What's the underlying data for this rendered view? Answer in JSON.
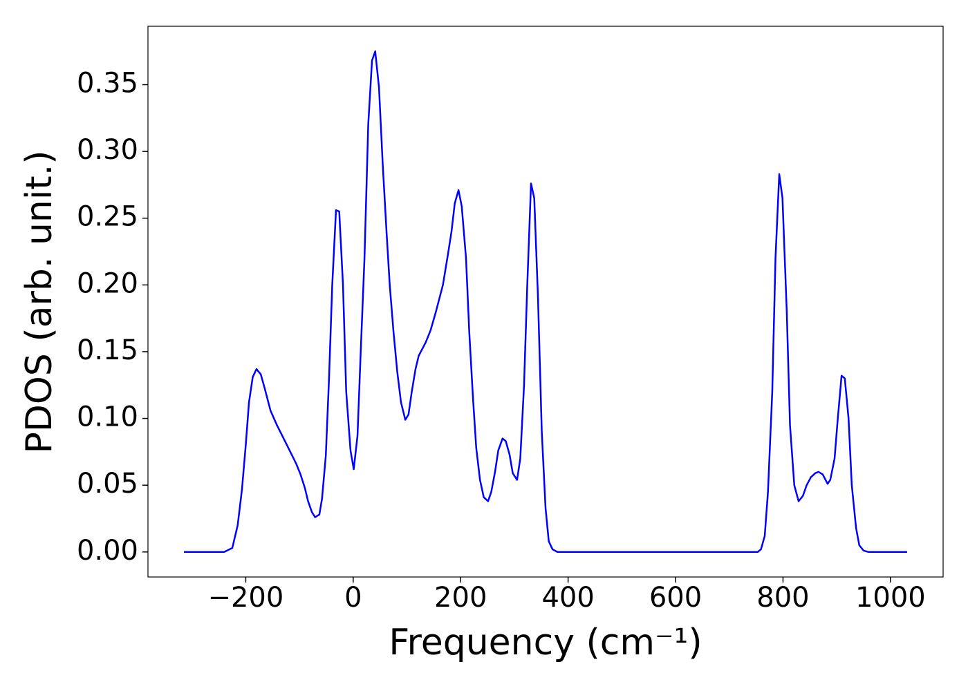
{
  "chart_data": {
    "type": "line",
    "xlabel": "Frequency (cm⁻¹)",
    "ylabel": "PDOS (arb. unit.)",
    "xlim": [
      -382,
      1098
    ],
    "ylim": [
      -0.01875,
      0.39375
    ],
    "xticks": [
      {
        "value": -200,
        "label": "−200"
      },
      0,
      200,
      400,
      600,
      800,
      1000
    ],
    "yticks": [
      {
        "value": 0,
        "label": "0.00"
      },
      {
        "value": 0.05,
        "label": "0.05"
      },
      {
        "value": 0.1,
        "label": "0.10"
      },
      {
        "value": 0.15,
        "label": "0.15"
      },
      {
        "value": 0.2,
        "label": "0.20"
      },
      {
        "value": 0.25,
        "label": "0.25"
      },
      {
        "value": 0.3,
        "label": "0.30"
      },
      {
        "value": 0.35,
        "label": "0.35"
      }
    ],
    "grid": false,
    "series": [
      {
        "color": "#0000ff",
        "x": [
          -315,
          -240,
          -225,
          -215,
          -207,
          -200,
          -194,
          -187,
          -180,
          -172,
          -165,
          -154,
          -142,
          -122,
          -106,
          -98,
          -90,
          -84,
          -77,
          -71,
          -63,
          -58,
          -51,
          -45,
          -39,
          -32,
          -26,
          -19,
          -13,
          -5,
          1,
          8,
          14,
          21,
          28,
          35,
          41,
          48,
          55,
          62,
          68,
          75,
          82,
          89,
          97,
          103,
          109,
          116,
          122,
          135,
          144,
          154,
          167,
          176,
          183,
          189,
          196,
          202,
          210,
          216,
          223,
          229,
          236,
          243,
          251,
          257,
          264,
          270,
          278,
          284,
          291,
          297,
          305,
          311,
          318,
          324,
          331,
          337,
          344,
          351,
          358,
          364,
          371,
          380,
          753,
          759,
          766,
          772,
          780,
          786,
          793,
          799,
          807,
          813,
          821,
          829,
          837,
          844,
          852,
          860,
          866,
          874,
          883,
          888,
          896,
          902,
          909,
          915,
          922,
          928,
          936,
          942,
          950,
          959,
          1031
        ],
        "values": [
          0,
          0,
          0.003,
          0.02,
          0.047,
          0.08,
          0.112,
          0.131,
          0.137,
          0.133,
          0.123,
          0.106,
          0.095,
          0.079,
          0.066,
          0.058,
          0.048,
          0.038,
          0.03,
          0.026,
          0.028,
          0.04,
          0.072,
          0.13,
          0.2,
          0.256,
          0.255,
          0.2,
          0.12,
          0.076,
          0.062,
          0.087,
          0.15,
          0.22,
          0.32,
          0.368,
          0.375,
          0.348,
          0.29,
          0.24,
          0.2,
          0.165,
          0.135,
          0.112,
          0.099,
          0.103,
          0.12,
          0.137,
          0.147,
          0.157,
          0.166,
          0.18,
          0.2,
          0.222,
          0.24,
          0.261,
          0.271,
          0.259,
          0.22,
          0.165,
          0.115,
          0.078,
          0.054,
          0.041,
          0.038,
          0.045,
          0.06,
          0.076,
          0.085,
          0.083,
          0.073,
          0.059,
          0.054,
          0.07,
          0.125,
          0.2,
          0.276,
          0.265,
          0.19,
          0.09,
          0.033,
          0.008,
          0.002,
          0,
          0,
          0.002,
          0.012,
          0.045,
          0.12,
          0.22,
          0.283,
          0.265,
          0.18,
          0.095,
          0.05,
          0.038,
          0.042,
          0.05,
          0.056,
          0.059,
          0.06,
          0.058,
          0.051,
          0.054,
          0.07,
          0.1,
          0.132,
          0.13,
          0.1,
          0.05,
          0.018,
          0.005,
          0.001,
          0,
          0
        ]
      }
    ]
  }
}
